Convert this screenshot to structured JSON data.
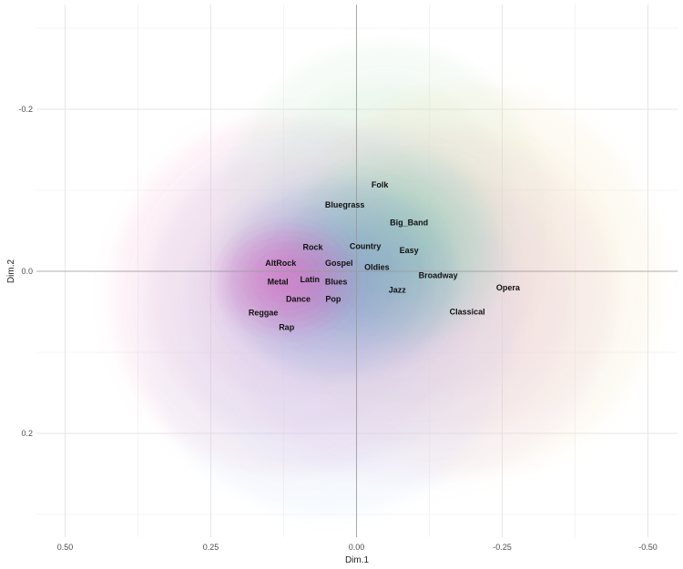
{
  "chart_data": {
    "type": "scatter",
    "title": "",
    "xlabel": "Dim.1",
    "ylabel": "Dim.2",
    "x_reversed": true,
    "y_reversed": true,
    "xlim": [
      0.505,
      -0.55
    ],
    "ylim": [
      -0.33,
      0.3
    ],
    "x_ticks": [
      {
        "value": 0.5,
        "label": "0.50"
      },
      {
        "value": 0.25,
        "label": "0.25"
      },
      {
        "value": 0.0,
        "label": "0.00"
      },
      {
        "value": -0.25,
        "label": "-0.25"
      },
      {
        "value": -0.5,
        "label": "-0.50"
      }
    ],
    "y_ticks": [
      {
        "value": -0.2,
        "label": "-0.2"
      },
      {
        "value": 0.0,
        "label": "0.0"
      },
      {
        "value": 0.2,
        "label": "0.2"
      }
    ],
    "grid": true,
    "points": [
      {
        "name": "Folk",
        "x": -0.04,
        "y": -0.107
      },
      {
        "name": "Bluegrass",
        "x": 0.02,
        "y": -0.082
      },
      {
        "name": "Big_Band",
        "x": -0.09,
        "y": -0.06
      },
      {
        "name": "Rock",
        "x": 0.075,
        "y": -0.03
      },
      {
        "name": "Country",
        "x": -0.015,
        "y": -0.031
      },
      {
        "name": "Easy",
        "x": -0.09,
        "y": -0.026
      },
      {
        "name": "AltRock",
        "x": 0.13,
        "y": -0.01
      },
      {
        "name": "Gospel",
        "x": 0.03,
        "y": -0.01
      },
      {
        "name": "Oldies",
        "x": -0.035,
        "y": -0.005
      },
      {
        "name": "Broadway",
        "x": -0.14,
        "y": 0.005
      },
      {
        "name": "Opera",
        "x": -0.26,
        "y": 0.02
      },
      {
        "name": "Metal",
        "x": 0.135,
        "y": 0.013
      },
      {
        "name": "Latin",
        "x": 0.08,
        "y": 0.01
      },
      {
        "name": "Blues",
        "x": 0.035,
        "y": 0.013
      },
      {
        "name": "Jazz",
        "x": -0.07,
        "y": 0.023
      },
      {
        "name": "Dance",
        "x": 0.1,
        "y": 0.034
      },
      {
        "name": "Pop",
        "x": 0.04,
        "y": 0.034
      },
      {
        "name": "Classical",
        "x": -0.19,
        "y": 0.05
      },
      {
        "name": "Reggae",
        "x": 0.16,
        "y": 0.051
      },
      {
        "name": "Rap",
        "x": 0.12,
        "y": 0.069
      }
    ],
    "density_clouds": [
      {
        "color": "#f4a7cf",
        "cx": 0.12,
        "cy": 0.03,
        "rx": 0.3,
        "ry": 0.22
      },
      {
        "color": "#bfe5c4",
        "cx": -0.05,
        "cy": -0.06,
        "rx": 0.28,
        "ry": 0.22
      },
      {
        "color": "#f3e3b4",
        "cx": -0.2,
        "cy": 0.01,
        "rx": 0.32,
        "ry": 0.24
      },
      {
        "color": "#c7dcf2",
        "cx": 0.05,
        "cy": 0.06,
        "rx": 0.32,
        "ry": 0.24
      },
      {
        "color": "#e4c6ee",
        "cx": -0.1,
        "cy": 0.04,
        "rx": 0.34,
        "ry": 0.22
      },
      {
        "color": "#7bcfa3",
        "cx": -0.07,
        "cy": -0.03,
        "rx": 0.18,
        "ry": 0.12
      },
      {
        "color": "#6f8fcf",
        "cx": 0.03,
        "cy": 0.01,
        "rx": 0.2,
        "ry": 0.12
      },
      {
        "color": "#e65ab9",
        "cx": 0.12,
        "cy": 0.01,
        "rx": 0.12,
        "ry": 0.07
      }
    ]
  }
}
